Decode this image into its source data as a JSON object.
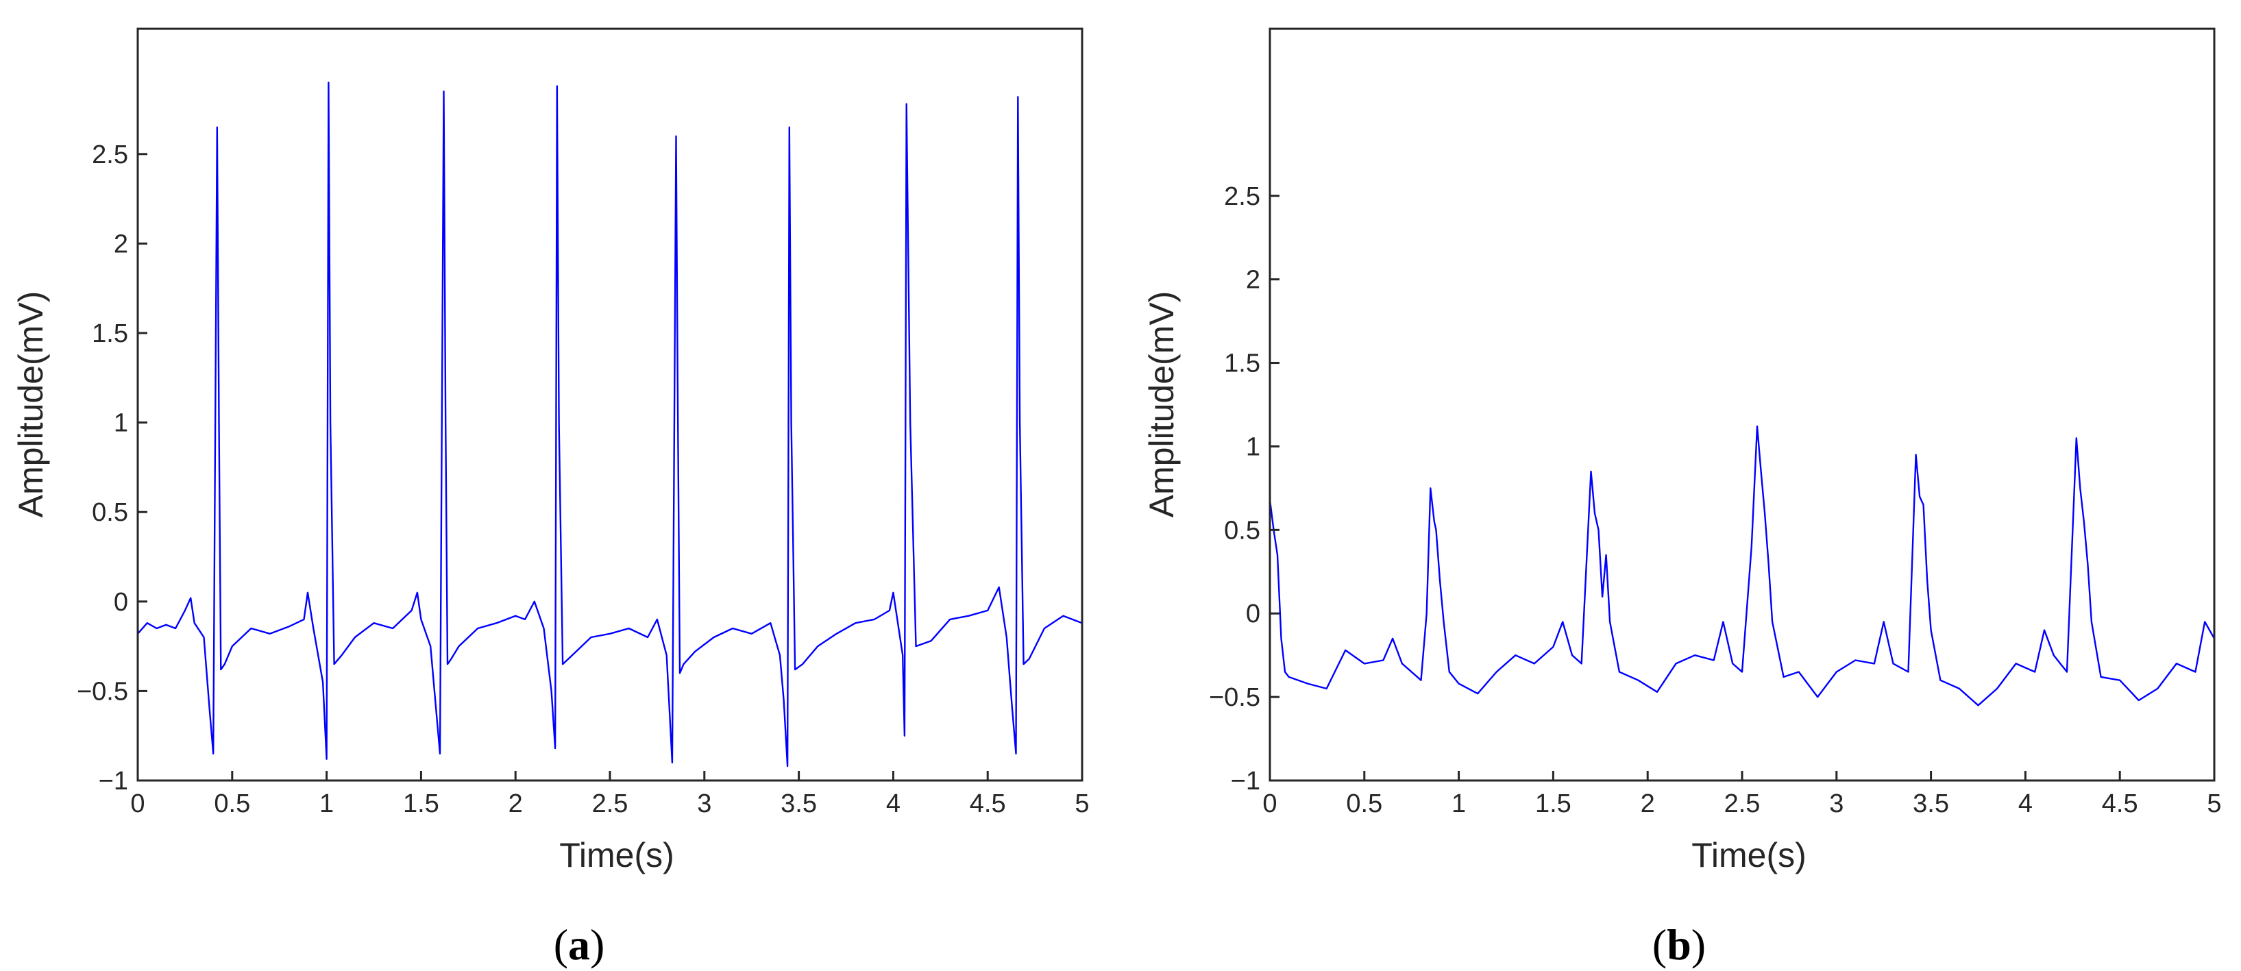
{
  "colors": {
    "trace": "#0000ff",
    "axis": "#262626"
  },
  "chart_data": [
    {
      "type": "line",
      "panel_label": "a",
      "xlabel": "Time(s)",
      "ylabel": "Amplitude(mV)",
      "xlim": [
        0,
        5
      ],
      "ylim": [
        -1,
        3.2
      ],
      "xticks": [
        0,
        0.5,
        1,
        1.5,
        2,
        2.5,
        3,
        3.5,
        4,
        4.5,
        5
      ],
      "xtick_labels": [
        "0",
        "0.5",
        "1",
        "1.5",
        "2",
        "2.5",
        "3",
        "3.5",
        "4",
        "4.5",
        "5"
      ],
      "yticks": [
        -1,
        -0.5,
        0,
        0.5,
        1,
        1.5,
        2,
        2.5
      ],
      "ytick_labels": [
        "−1",
        "−0.5",
        "0",
        "0.5",
        "1",
        "1.5",
        "2",
        "2.5"
      ],
      "grid": false,
      "series": [
        {
          "x": [
            0,
            0.05,
            0.1,
            0.15,
            0.2,
            0.25,
            0.28,
            0.3,
            0.35,
            0.38,
            0.4,
            0.42,
            0.43,
            0.44,
            0.46,
            0.5,
            0.6,
            0.7,
            0.8,
            0.88,
            0.9,
            0.93,
            0.98,
            1.0,
            1.01,
            1.02,
            1.04,
            1.08,
            1.15,
            1.25,
            1.35,
            1.45,
            1.48,
            1.5,
            1.55,
            1.6,
            1.62,
            1.63,
            1.64,
            1.66,
            1.7,
            1.8,
            1.9,
            2.0,
            2.05,
            2.1,
            2.15,
            2.19,
            2.21,
            2.22,
            2.23,
            2.25,
            2.3,
            2.4,
            2.5,
            2.6,
            2.7,
            2.75,
            2.8,
            2.83,
            2.85,
            2.86,
            2.87,
            2.89,
            2.95,
            3.05,
            3.15,
            3.25,
            3.35,
            3.4,
            3.42,
            3.44,
            3.45,
            3.46,
            3.48,
            3.52,
            3.6,
            3.7,
            3.8,
            3.9,
            3.98,
            4.0,
            4.05,
            4.06,
            4.07,
            4.09,
            4.12,
            4.2,
            4.3,
            4.4,
            4.5,
            4.56,
            4.6,
            4.63,
            4.65,
            4.66,
            4.67,
            4.69,
            4.72,
            4.8,
            4.9,
            5.0
          ],
          "y": [
            -0.18,
            -0.12,
            -0.15,
            -0.13,
            -0.15,
            -0.05,
            0.02,
            -0.12,
            -0.2,
            -0.6,
            -0.85,
            2.65,
            1.0,
            -0.38,
            -0.35,
            -0.25,
            -0.15,
            -0.18,
            -0.14,
            -0.1,
            0.05,
            -0.15,
            -0.45,
            -0.88,
            2.9,
            1.0,
            -0.35,
            -0.3,
            -0.2,
            -0.12,
            -0.15,
            -0.05,
            0.05,
            -0.1,
            -0.25,
            -0.85,
            2.85,
            1.0,
            -0.35,
            -0.32,
            -0.25,
            -0.15,
            -0.12,
            -0.08,
            -0.1,
            0.0,
            -0.15,
            -0.5,
            -0.82,
            2.88,
            1.0,
            -0.35,
            -0.3,
            -0.2,
            -0.18,
            -0.15,
            -0.2,
            -0.1,
            -0.3,
            -0.9,
            2.6,
            1.0,
            -0.4,
            -0.35,
            -0.28,
            -0.2,
            -0.15,
            -0.18,
            -0.12,
            -0.3,
            -0.55,
            -0.92,
            2.65,
            1.0,
            -0.38,
            -0.35,
            -0.25,
            -0.18,
            -0.12,
            -0.1,
            -0.05,
            0.05,
            -0.3,
            -0.75,
            2.78,
            1.0,
            -0.25,
            -0.22,
            -0.1,
            -0.08,
            -0.05,
            0.08,
            -0.2,
            -0.6,
            -0.85,
            2.82,
            1.0,
            -0.35,
            -0.32,
            -0.15,
            -0.08,
            -0.12
          ]
        }
      ]
    },
    {
      "type": "line",
      "panel_label": "b",
      "xlabel": "Time(s)",
      "ylabel": "Amplitude(mV)",
      "xlim": [
        0,
        5
      ],
      "ylim": [
        -1,
        3.5
      ],
      "xticks": [
        0,
        0.5,
        1,
        1.5,
        2,
        2.5,
        3,
        3.5,
        4,
        4.5,
        5
      ],
      "xtick_labels": [
        "0",
        "0.5",
        "1",
        "1.5",
        "2",
        "2.5",
        "3",
        "3.5",
        "4",
        "4.5",
        "5"
      ],
      "yticks": [
        -1,
        -0.5,
        0,
        0.5,
        1,
        1.5,
        2,
        2.5
      ],
      "ytick_labels": [
        "−1",
        "−0.5",
        "0",
        "0.5",
        "1",
        "1.5",
        "2",
        "2.5"
      ],
      "grid": false,
      "series": [
        {
          "x": [
            0,
            0.02,
            0.04,
            0.06,
            0.08,
            0.1,
            0.2,
            0.3,
            0.4,
            0.5,
            0.6,
            0.65,
            0.7,
            0.8,
            0.83,
            0.85,
            0.87,
            0.88,
            0.9,
            0.92,
            0.95,
            1.0,
            1.1,
            1.2,
            1.3,
            1.4,
            1.5,
            1.55,
            1.6,
            1.65,
            1.7,
            1.72,
            1.74,
            1.76,
            1.78,
            1.8,
            1.85,
            1.95,
            2.05,
            2.15,
            2.25,
            2.35,
            2.4,
            2.45,
            2.5,
            2.55,
            2.58,
            2.6,
            2.62,
            2.64,
            2.66,
            2.72,
            2.8,
            2.9,
            3.0,
            3.1,
            3.2,
            3.25,
            3.3,
            3.38,
            3.42,
            3.44,
            3.46,
            3.48,
            3.5,
            3.55,
            3.65,
            3.75,
            3.85,
            3.95,
            4.05,
            4.1,
            4.15,
            4.22,
            4.27,
            4.29,
            4.31,
            4.33,
            4.35,
            4.4,
            4.5,
            4.6,
            4.7,
            4.8,
            4.9,
            4.95,
            5.0
          ],
          "y": [
            0.68,
            0.5,
            0.35,
            -0.15,
            -0.35,
            -0.38,
            -0.42,
            -0.45,
            -0.22,
            -0.3,
            -0.28,
            -0.15,
            -0.3,
            -0.4,
            0.0,
            0.75,
            0.55,
            0.5,
            0.2,
            -0.05,
            -0.35,
            -0.42,
            -0.48,
            -0.35,
            -0.25,
            -0.3,
            -0.2,
            -0.05,
            -0.25,
            -0.3,
            0.85,
            0.6,
            0.5,
            0.1,
            0.35,
            -0.05,
            -0.35,
            -0.4,
            -0.47,
            -0.3,
            -0.25,
            -0.28,
            -0.05,
            -0.3,
            -0.35,
            0.4,
            1.12,
            0.85,
            0.6,
            0.3,
            -0.05,
            -0.38,
            -0.35,
            -0.5,
            -0.35,
            -0.28,
            -0.3,
            -0.05,
            -0.3,
            -0.35,
            0.95,
            0.7,
            0.65,
            0.2,
            -0.1,
            -0.4,
            -0.45,
            -0.55,
            -0.45,
            -0.3,
            -0.35,
            -0.1,
            -0.25,
            -0.35,
            1.05,
            0.75,
            0.55,
            0.3,
            -0.05,
            -0.38,
            -0.4,
            -0.52,
            -0.45,
            -0.3,
            -0.35,
            -0.05,
            -0.15
          ]
        }
      ]
    }
  ]
}
